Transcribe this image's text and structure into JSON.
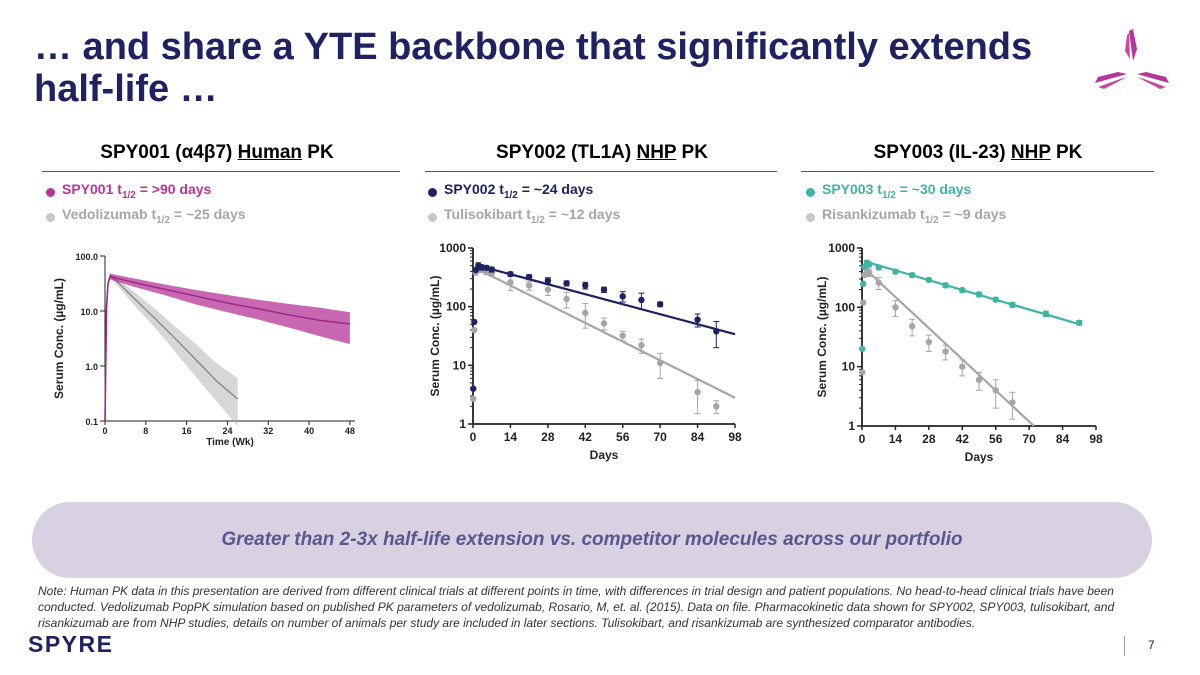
{
  "slide": {
    "title": "… and share a YTE backbone that significantly extends half-life …",
    "page_number": "7",
    "brand": "SPYRE",
    "banner": "Greater than 2-3x half-life extension vs. competitor molecules across our portfolio",
    "note": "Note: Human PK data in this presentation are derived from different clinical trials at different points in time, with differences in trial design and patient populations. No head-to-head clinical trials have been conducted. Vedolizumab PopPK simulation based on published PK parameters of vedolizumab, Rosario, M, et. al. (2015). Data on file. Pharmacokinetic data shown for SPY002, SPY003, tulisokibart, and risankizumab are from NHP studies, details on number of animals per study are included in later sections. Tulisokibart, and risankizumab are synthesized comparator antibodies."
  },
  "colors": {
    "navy": "#1f2163",
    "magenta": "#b5359a",
    "teal": "#3fb4a2",
    "gray": "#a6a6a6"
  },
  "panels": [
    {
      "head_pre": "SPY001 (α4β7) ",
      "head_u": "Human",
      "head_post": " PK",
      "color": "#b5359a",
      "lead_name": "SPY001 t",
      "lead_sub": "1/2",
      "lead_val": " = >90 days",
      "comp_name": "Vedolizumab t",
      "comp_sub": "1/2",
      "comp_val": " = ~25 days"
    },
    {
      "head_pre": "SPY002 (TL1A) ",
      "head_u": "NHP",
      "head_post": " PK",
      "color": "#1f2163",
      "lead_name": "SPY002 t",
      "lead_sub": "1/2",
      "lead_val": " = ~24 days",
      "comp_name": "Tulisokibart t",
      "comp_sub": "1/2",
      "comp_val": " = ~12 days"
    },
    {
      "head_pre": "SPY003 (IL-23) ",
      "head_u": "NHP",
      "head_post": " PK",
      "color": "#3fb4a2",
      "lead_name": "SPY003 t",
      "lead_sub": "1/2",
      "lead_val": " = ~30 days",
      "comp_name": "Risankizumab t",
      "comp_sub": "1/2",
      "comp_val": " = ~9 days"
    }
  ],
  "chart_data": [
    {
      "type": "area",
      "title": "SPY001 (α4β7) Human PK",
      "xlabel": "Time (Wk)",
      "ylabel": "Serum Conc. (µg/mL)",
      "yscale": "log",
      "ylim": [
        0.1,
        100
      ],
      "xlim": [
        0,
        49
      ],
      "xticks": [
        "0",
        "8",
        "16",
        "24",
        "32",
        "40",
        "48"
      ],
      "yticks": [
        "0.1",
        "1.0",
        "10.0",
        "100.0"
      ],
      "series": [
        {
          "name": "SPY001",
          "color": "#b5359a",
          "x": [
            0,
            0.3,
            0.6,
            1,
            2,
            6,
            12,
            18,
            24,
            30,
            36,
            42,
            48
          ],
          "median": [
            0.1,
            12,
            32,
            43,
            40,
            32.5,
            24.5,
            18.5,
            14,
            11,
            8.5,
            6.8,
            5.8
          ],
          "lower": [
            0.1,
            10,
            28,
            38,
            35,
            27,
            19,
            13,
            9.5,
            7,
            5,
            3.5,
            2.5
          ],
          "upper": [
            0.1,
            14,
            36,
            48,
            45.5,
            38.5,
            30,
            24,
            19.5,
            16,
            13.5,
            11.5,
            9.5
          ]
        },
        {
          "name": "Vedolizumab",
          "color": "#a6a6a6",
          "x": [
            0,
            0.3,
            0.6,
            1,
            2,
            6,
            10,
            14,
            18,
            22,
            26
          ],
          "median": [
            0.1,
            12,
            32,
            43,
            37,
            16,
            7,
            3,
            1.25,
            0.52,
            0.25
          ],
          "lower": [
            0.1,
            10,
            28,
            38,
            32,
            12,
            4.7,
            1.7,
            0.6,
            0.22,
            0.082
          ],
          "upper": [
            0.1,
            14,
            36,
            48,
            42,
            21,
            10.5,
            5,
            2.4,
            1.1,
            0.6
          ]
        }
      ]
    },
    {
      "type": "scatter",
      "title": "SPY002 (TL1A) NHP PK",
      "xlabel": "Days",
      "ylabel": "Serum Conc. (µg/mL)",
      "yscale": "log",
      "ylim": [
        1,
        1000
      ],
      "xlim": [
        0,
        98
      ],
      "xticks": [
        "0",
        "14",
        "28",
        "42",
        "56",
        "70",
        "84",
        "98"
      ],
      "yticks": [
        "1",
        "10",
        "100",
        "1000"
      ],
      "series": [
        {
          "name": "SPY002",
          "color": "#1f2163",
          "fit": {
            "x": [
              2,
              98
            ],
            "y": [
              500,
              34
            ]
          },
          "points": [
            [
              0.1,
              4,
              0
            ],
            [
              0.5,
              55,
              0
            ],
            [
              1,
              420,
              0
            ],
            [
              2,
              500,
              60
            ],
            [
              3,
              470,
              50
            ],
            [
              5,
              460,
              40
            ],
            [
              7,
              430,
              40
            ],
            [
              14,
              360,
              30
            ],
            [
              21,
              320,
              30
            ],
            [
              28,
              280,
              30
            ],
            [
              35,
              250,
              25
            ],
            [
              42,
              230,
              30
            ],
            [
              49,
              195,
              20
            ],
            [
              56,
              150,
              30
            ],
            [
              63,
              130,
              40
            ],
            [
              70,
              110,
              10
            ],
            [
              84,
              60,
              15
            ],
            [
              91,
              38,
              18
            ]
          ]
        },
        {
          "name": "Tulisokibart",
          "color": "#a6a6a6",
          "fit": {
            "x": [
              2,
              98
            ],
            "y": [
              430,
              2.8
            ]
          },
          "points": [
            [
              0.1,
              2.7,
              0
            ],
            [
              0.5,
              40,
              0
            ],
            [
              1,
              380,
              0
            ],
            [
              2,
              460,
              60
            ],
            [
              3,
              430,
              50
            ],
            [
              5,
              390,
              40
            ],
            [
              7,
              370,
              40
            ],
            [
              14,
              260,
              70
            ],
            [
              21,
              230,
              40
            ],
            [
              28,
              195,
              40
            ],
            [
              35,
              135,
              40
            ],
            [
              42,
              78,
              35
            ],
            [
              49,
              52,
              12
            ],
            [
              56,
              32,
              6
            ],
            [
              63,
              22,
              6
            ],
            [
              70,
              11,
              5
            ],
            [
              84,
              3.5,
              2
            ],
            [
              91,
              2,
              0.5
            ]
          ]
        }
      ]
    },
    {
      "type": "scatter",
      "title": "SPY003 (IL-23) NHP PK",
      "xlabel": "Days",
      "ylabel": "Serum Conc. (µg/mL)",
      "yscale": "log",
      "ylim": [
        1,
        1000
      ],
      "xlim": [
        0,
        98
      ],
      "xticks": [
        "0",
        "14",
        "28",
        "42",
        "56",
        "70",
        "84",
        "98"
      ],
      "yticks": [
        "1",
        "10",
        "100",
        "1000"
      ],
      "series": [
        {
          "name": "SPY003",
          "color": "#3fb4a2",
          "fit": {
            "x": [
              2,
              91
            ],
            "y": [
              580,
              52
            ]
          },
          "points": [
            [
              0.1,
              20,
              0
            ],
            [
              0.5,
              250,
              0
            ],
            [
              1,
              480,
              0
            ],
            [
              2,
              560,
              60
            ],
            [
              3,
              530,
              50
            ],
            [
              7,
              470,
              40
            ],
            [
              14,
              400,
              30
            ],
            [
              21,
              350,
              25
            ],
            [
              28,
              290,
              20
            ],
            [
              35,
              235,
              20
            ],
            [
              42,
              195,
              15
            ],
            [
              49,
              165,
              15
            ],
            [
              56,
              135,
              10
            ],
            [
              63,
              110,
              10
            ],
            [
              77,
              78,
              8
            ],
            [
              91,
              55,
              5
            ]
          ]
        },
        {
          "name": "Risankizumab",
          "color": "#a6a6a6",
          "fit": {
            "x": [
              2,
              72
            ],
            "y": [
              420,
              1
            ]
          },
          "points": [
            [
              0.1,
              8,
              0
            ],
            [
              0.5,
              120,
              0
            ],
            [
              1,
              350,
              0
            ],
            [
              2,
              430,
              60
            ],
            [
              3,
              380,
              50
            ],
            [
              7,
              260,
              60
            ],
            [
              14,
              100,
              30
            ],
            [
              21,
              48,
              15
            ],
            [
              28,
              26,
              8
            ],
            [
              35,
              18,
              5
            ],
            [
              42,
              10,
              3
            ],
            [
              49,
              6,
              2
            ],
            [
              56,
              4,
              2
            ],
            [
              63,
              2.5,
              1.2
            ]
          ]
        }
      ]
    }
  ]
}
